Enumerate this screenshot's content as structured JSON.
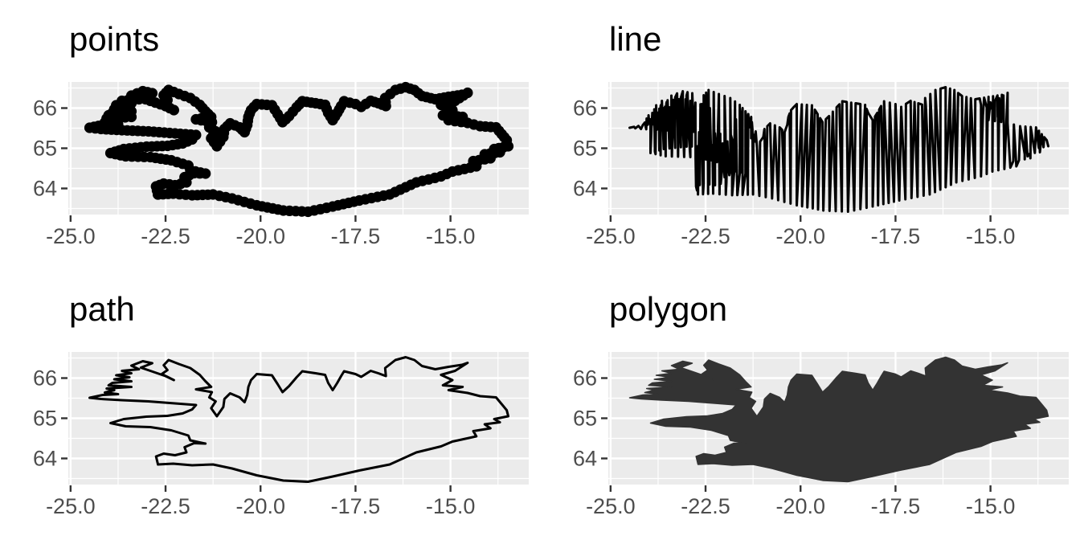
{
  "figure": {
    "background": "#FFFFFF",
    "layout": "2x2 grid of plots of the same Iceland coastline dataset"
  },
  "chart_data": {
    "type": "map-grid",
    "description": "Iceland coastline (longitude vs latitude) drawn with four different geometries",
    "style": {
      "panel_background": "#EBEBEB",
      "grid_color": "#FFFFFF",
      "tick_color": "#333333",
      "tick_label_color": "#4D4D4D",
      "title_color": "#000000",
      "data_color": "#000000",
      "polygon_fill": "#333333"
    },
    "shared": {
      "x_axis": {
        "ticks": [
          -25,
          -22.5,
          -20,
          -17.5,
          -15
        ],
        "tick_labels": [
          "-25.0",
          "-22.5",
          "-20.0",
          "-17.5",
          "-15.0"
        ],
        "minor_ticks": [
          -23.75,
          -21.25,
          -18.75,
          -16.25,
          -13.75
        ],
        "range": [
          -25.06,
          -12.94
        ]
      },
      "y_axis": {
        "ticks": [
          64,
          65,
          66
        ],
        "tick_labels": [
          "64",
          "65",
          "66"
        ],
        "minor_ticks": [
          63.5,
          64.5,
          65.5,
          66.5
        ],
        "range": [
          63.35,
          66.65
        ]
      },
      "coastline_lon_lat": [
        [
          -22.7,
          63.85
        ],
        [
          -22.75,
          64.05
        ],
        [
          -22.55,
          64.12
        ],
        [
          -22.25,
          64.08
        ],
        [
          -21.95,
          64.15
        ],
        [
          -22.0,
          64.28
        ],
        [
          -21.75,
          64.38
        ],
        [
          -21.45,
          64.37
        ],
        [
          -21.85,
          64.45
        ],
        [
          -21.9,
          64.57
        ],
        [
          -22.35,
          64.7
        ],
        [
          -22.9,
          64.78
        ],
        [
          -23.55,
          64.8
        ],
        [
          -23.95,
          64.88
        ],
        [
          -23.6,
          64.98
        ],
        [
          -23.0,
          65.04
        ],
        [
          -22.45,
          65.06
        ],
        [
          -22.05,
          65.12
        ],
        [
          -21.8,
          65.22
        ],
        [
          -21.7,
          65.33
        ],
        [
          -22.25,
          65.37
        ],
        [
          -22.95,
          65.42
        ],
        [
          -23.65,
          65.45
        ],
        [
          -24.2,
          65.48
        ],
        [
          -24.5,
          65.51
        ],
        [
          -24.15,
          65.58
        ],
        [
          -23.75,
          65.6
        ],
        [
          -24.1,
          65.64
        ],
        [
          -23.85,
          65.7
        ],
        [
          -24.05,
          65.74
        ],
        [
          -23.4,
          65.78
        ],
        [
          -24.0,
          65.82
        ],
        [
          -23.9,
          65.88
        ],
        [
          -23.4,
          65.92
        ],
        [
          -23.85,
          65.97
        ],
        [
          -23.45,
          66.02
        ],
        [
          -23.8,
          66.07
        ],
        [
          -23.4,
          66.12
        ],
        [
          -23.65,
          66.18
        ],
        [
          -23.2,
          66.22
        ],
        [
          -23.4,
          66.31
        ],
        [
          -23.1,
          66.42
        ],
        [
          -22.85,
          66.37
        ],
        [
          -23.15,
          66.26
        ],
        [
          -22.9,
          66.18
        ],
        [
          -22.5,
          66.05
        ],
        [
          -22.28,
          65.95
        ],
        [
          -22.6,
          66.1
        ],
        [
          -22.45,
          66.2
        ],
        [
          -22.55,
          66.32
        ],
        [
          -22.42,
          66.45
        ],
        [
          -22.15,
          66.35
        ],
        [
          -21.85,
          66.25
        ],
        [
          -21.6,
          66.08
        ],
        [
          -21.45,
          65.92
        ],
        [
          -21.3,
          65.78
        ],
        [
          -21.7,
          65.72
        ],
        [
          -21.28,
          65.65
        ],
        [
          -21.35,
          65.52
        ],
        [
          -21.18,
          65.42
        ],
        [
          -21.3,
          65.25
        ],
        [
          -21.15,
          65.05
        ],
        [
          -20.98,
          65.28
        ],
        [
          -20.95,
          65.48
        ],
        [
          -20.8,
          65.62
        ],
        [
          -20.55,
          65.52
        ],
        [
          -20.42,
          65.4
        ],
        [
          -20.35,
          65.58
        ],
        [
          -20.32,
          65.78
        ],
        [
          -20.25,
          65.95
        ],
        [
          -20.1,
          66.1
        ],
        [
          -19.7,
          66.07
        ],
        [
          -19.55,
          65.85
        ],
        [
          -19.42,
          65.65
        ],
        [
          -19.25,
          65.8
        ],
        [
          -19.05,
          66.02
        ],
        [
          -18.9,
          66.17
        ],
        [
          -18.55,
          66.12
        ],
        [
          -18.3,
          66.08
        ],
        [
          -18.22,
          65.88
        ],
        [
          -18.1,
          65.7
        ],
        [
          -17.98,
          65.88
        ],
        [
          -17.88,
          66.05
        ],
        [
          -17.8,
          66.17
        ],
        [
          -17.5,
          66.1
        ],
        [
          -17.35,
          66.03
        ],
        [
          -17.1,
          66.18
        ],
        [
          -16.9,
          66.12
        ],
        [
          -16.7,
          66.05
        ],
        [
          -16.72,
          66.25
        ],
        [
          -16.45,
          66.45
        ],
        [
          -16.18,
          66.52
        ],
        [
          -15.95,
          66.45
        ],
        [
          -15.75,
          66.3
        ],
        [
          -15.4,
          66.22
        ],
        [
          -15.05,
          66.28
        ],
        [
          -14.7,
          66.33
        ],
        [
          -14.55,
          66.38
        ],
        [
          -14.88,
          66.18
        ],
        [
          -15.25,
          66.08
        ],
        [
          -14.95,
          65.95
        ],
        [
          -15.2,
          65.82
        ],
        [
          -14.68,
          65.78
        ],
        [
          -15.05,
          65.7
        ],
        [
          -14.55,
          65.63
        ],
        [
          -14.22,
          65.55
        ],
        [
          -13.8,
          65.52
        ],
        [
          -13.65,
          65.35
        ],
        [
          -13.52,
          65.2
        ],
        [
          -13.48,
          65.05
        ],
        [
          -13.85,
          64.98
        ],
        [
          -13.7,
          64.9
        ],
        [
          -14.1,
          64.85
        ],
        [
          -13.95,
          64.75
        ],
        [
          -14.4,
          64.68
        ],
        [
          -14.32,
          64.55
        ],
        [
          -14.95,
          64.42
        ],
        [
          -15.25,
          64.3
        ],
        [
          -15.9,
          64.15
        ],
        [
          -16.6,
          63.85
        ],
        [
          -17.4,
          63.7
        ],
        [
          -18.1,
          63.55
        ],
        [
          -18.75,
          63.42
        ],
        [
          -19.4,
          63.45
        ],
        [
          -20.1,
          63.58
        ],
        [
          -20.75,
          63.75
        ],
        [
          -21.25,
          63.85
        ],
        [
          -21.8,
          63.83
        ],
        [
          -22.3,
          63.87
        ],
        [
          -22.7,
          63.85
        ]
      ]
    },
    "panels": [
      {
        "title": "points",
        "type": "scatter",
        "marker_color": "#000000",
        "marker_radius_px": 6.6
      },
      {
        "title": "line",
        "type": "line",
        "stroke_color": "#000000",
        "note": "vertices connected in order of increasing x"
      },
      {
        "title": "path",
        "type": "path",
        "stroke_color": "#000000",
        "note": "vertices connected in data order"
      },
      {
        "title": "polygon",
        "type": "polygon",
        "fill_color": "#333333"
      }
    ]
  }
}
